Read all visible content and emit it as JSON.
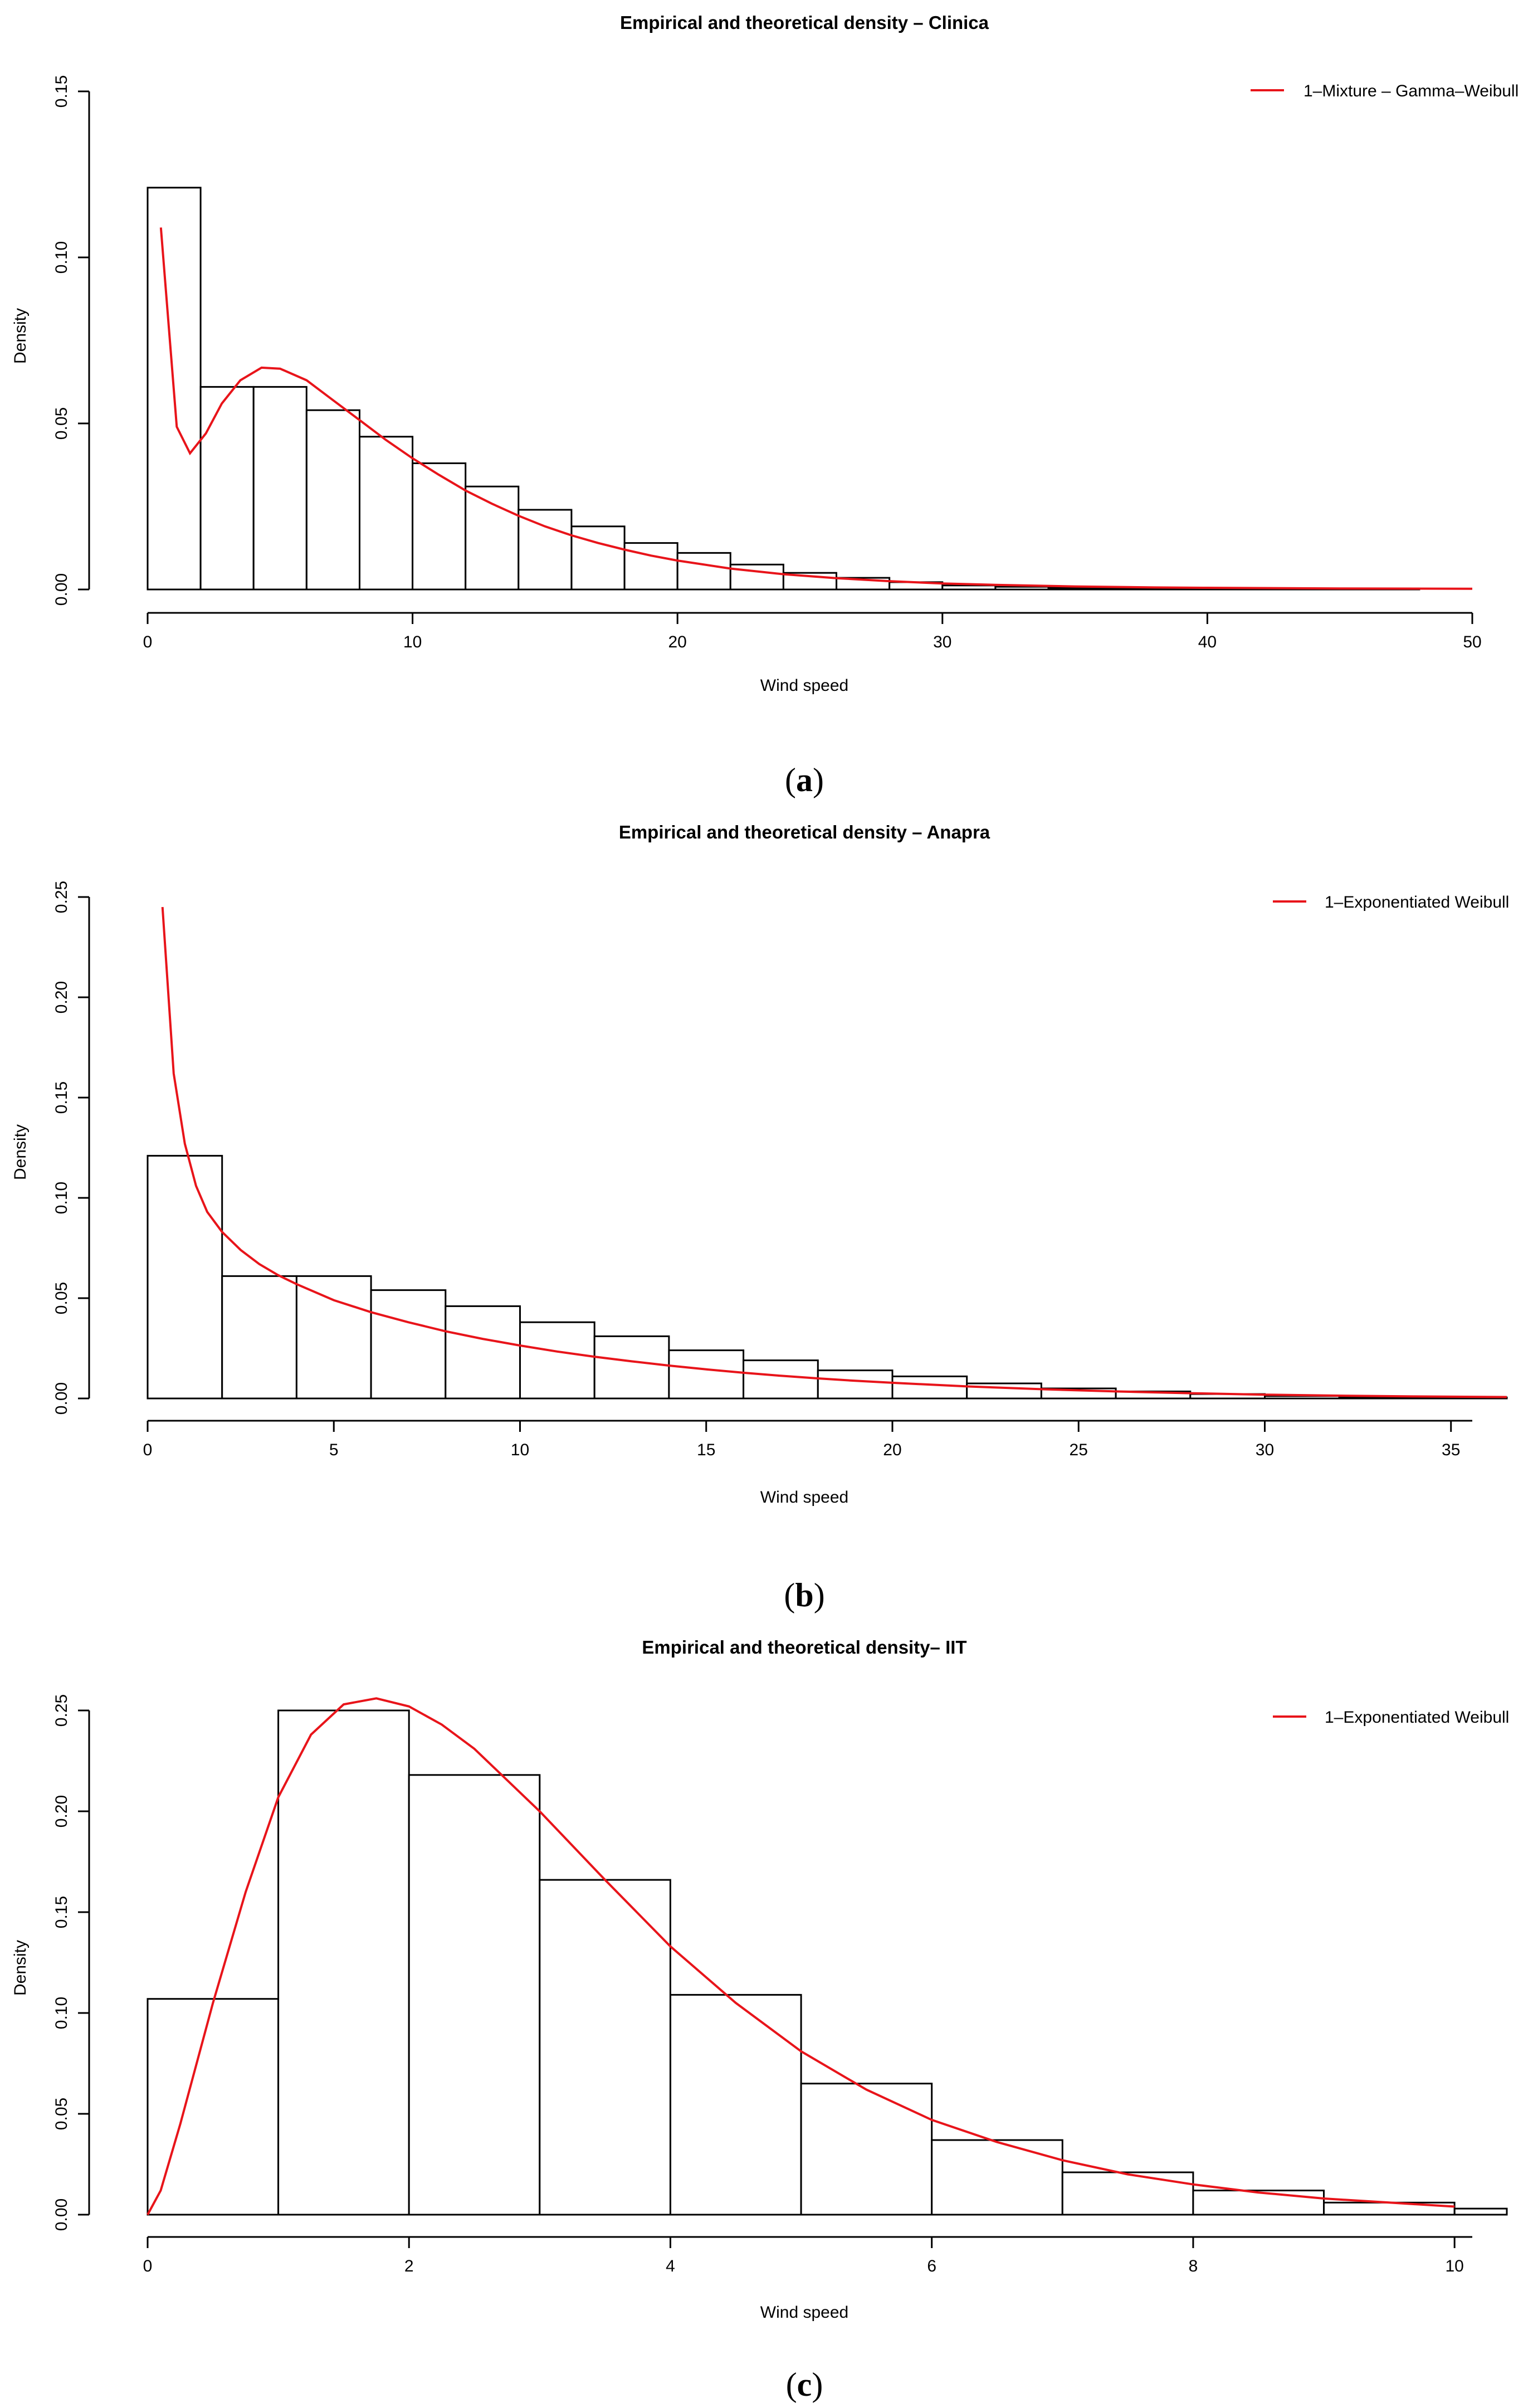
{
  "figure": {
    "panels": [
      {
        "caption_letter": "a"
      },
      {
        "caption_letter": "b"
      },
      {
        "caption_letter": "c"
      }
    ]
  },
  "chart_data": [
    {
      "type": "bar",
      "title": "Empirical and theoretical density – Clinica",
      "xlabel": "Wind speed",
      "ylabel": "Density",
      "xlim": [
        0,
        50
      ],
      "ylim": [
        0,
        0.15
      ],
      "xticks": [
        0,
        10,
        20,
        30,
        40,
        50
      ],
      "xtick_labels": [
        "0",
        "10",
        "20",
        "30",
        "40",
        "50"
      ],
      "yticks": [
        0,
        0.05,
        0.1,
        0.15
      ],
      "ytick_labels": [
        "0.00",
        "0.05",
        "0.10",
        "0.15"
      ],
      "legend_position": "top-right",
      "bins": {
        "edges": [
          0,
          2,
          4,
          6,
          8,
          10,
          12,
          14,
          16,
          18,
          20,
          22,
          24,
          26,
          28,
          30,
          32,
          34,
          36,
          38,
          40,
          42,
          44,
          46,
          48
        ],
        "density": [
          0.121,
          0.061,
          0.061,
          0.054,
          0.046,
          0.038,
          0.031,
          0.024,
          0.019,
          0.014,
          0.011,
          0.0075,
          0.005,
          0.0035,
          0.0022,
          0.0012,
          0.0008,
          0.0005,
          0.0004,
          0.0003,
          0.0003,
          0.0002,
          0.0002,
          0.0001
        ]
      },
      "series": [
        {
          "name": "1–Mixture – Gamma–Weibull",
          "color": "#e8141a",
          "x": [
            0.5,
            1.1,
            1.6,
            2.2,
            2.8,
            3.5,
            4.3,
            5.0,
            6.0,
            7.0,
            8.0,
            9.0,
            10,
            11,
            12,
            13,
            14,
            15,
            16,
            17,
            18,
            19,
            20,
            22,
            24,
            26,
            28,
            30,
            32,
            35,
            38,
            40,
            45,
            50
          ],
          "y": [
            0.109,
            0.049,
            0.041,
            0.047,
            0.056,
            0.063,
            0.0668,
            0.0665,
            0.063,
            0.057,
            0.051,
            0.045,
            0.0395,
            0.0345,
            0.0298,
            0.0258,
            0.0222,
            0.019,
            0.0163,
            0.014,
            0.012,
            0.0102,
            0.0087,
            0.0063,
            0.0046,
            0.0034,
            0.0025,
            0.0018,
            0.0014,
            0.0009,
            0.0006,
            0.0005,
            0.0003,
            0.0002
          ]
        }
      ]
    },
    {
      "type": "bar",
      "title": "Empirical and theoretical density – Anapra",
      "xlabel": "Wind speed",
      "ylabel": "Density",
      "xlim": [
        0,
        36.5
      ],
      "ylim": [
        0,
        0.25
      ],
      "xticks": [
        0,
        5,
        10,
        15,
        20,
        25,
        30,
        35
      ],
      "xtick_labels": [
        "0",
        "5",
        "10",
        "15",
        "20",
        "25",
        "30",
        "35"
      ],
      "yticks": [
        0,
        0.05,
        0.1,
        0.15,
        0.2,
        0.25
      ],
      "ytick_labels": [
        "0.00",
        "0.05",
        "0.10",
        "0.15",
        "0.20",
        "0.25"
      ],
      "legend_position": "top-right",
      "bins": {
        "edges": [
          0,
          2,
          4,
          6,
          8,
          10,
          12,
          14,
          16,
          18,
          20,
          22,
          24,
          26,
          28,
          30,
          32,
          34,
          36.5
        ],
        "density": [
          0.121,
          0.061,
          0.061,
          0.054,
          0.046,
          0.038,
          0.031,
          0.024,
          0.019,
          0.014,
          0.011,
          0.0075,
          0.005,
          0.0035,
          0.0022,
          0.0012,
          0.0008,
          0.0005
        ]
      },
      "series": [
        {
          "name": "1–Exponentiated Weibull",
          "color": "#e8141a",
          "x": [
            0.4,
            0.7,
            1.0,
            1.3,
            1.6,
            2.0,
            2.5,
            3.0,
            3.5,
            4,
            5,
            6,
            7,
            8,
            9,
            10,
            11,
            12,
            13,
            14,
            15,
            16,
            17,
            18,
            19,
            20,
            22,
            24,
            26,
            28,
            30,
            32,
            34,
            36.5
          ],
          "y": [
            0.245,
            0.162,
            0.127,
            0.106,
            0.093,
            0.083,
            0.074,
            0.067,
            0.0615,
            0.057,
            0.049,
            0.043,
            0.038,
            0.0335,
            0.0297,
            0.0264,
            0.0234,
            0.0208,
            0.0185,
            0.0164,
            0.0145,
            0.0128,
            0.0113,
            0.01,
            0.0088,
            0.0078,
            0.006,
            0.0046,
            0.0035,
            0.0026,
            0.0019,
            0.0014,
            0.001,
            0.0007
          ]
        }
      ]
    },
    {
      "type": "bar",
      "title": "Empirical and theoretical density– IIT",
      "xlabel": "Wind speed",
      "ylabel": "Density",
      "xlim": [
        0,
        10.4
      ],
      "ylim": [
        0,
        0.25
      ],
      "xticks": [
        0,
        2,
        4,
        6,
        8,
        10
      ],
      "xtick_labels": [
        "0",
        "2",
        "4",
        "6",
        "8",
        "10"
      ],
      "yticks": [
        0,
        0.05,
        0.1,
        0.15,
        0.2,
        0.25
      ],
      "ytick_labels": [
        "0.00",
        "0.05",
        "0.10",
        "0.15",
        "0.20",
        "0.25"
      ],
      "legend_position": "top-right",
      "bins": {
        "edges": [
          0,
          1,
          2,
          3,
          4,
          5,
          6,
          7,
          8,
          9,
          10,
          10.4
        ],
        "density": [
          0.107,
          0.25,
          0.218,
          0.166,
          0.109,
          0.065,
          0.037,
          0.021,
          0.012,
          0.006,
          0.003
        ]
      },
      "series": [
        {
          "name": "1–Exponentiated Weibull",
          "color": "#e8141a",
          "x": [
            0,
            0.1,
            0.25,
            0.5,
            0.75,
            1.0,
            1.25,
            1.5,
            1.75,
            2.0,
            2.25,
            2.5,
            3.0,
            3.5,
            4.0,
            4.5,
            5.0,
            5.5,
            6.0,
            6.5,
            7.0,
            7.5,
            8.0,
            8.5,
            9.0,
            9.5,
            10.0
          ],
          "y": [
            0,
            0.012,
            0.045,
            0.105,
            0.16,
            0.207,
            0.238,
            0.253,
            0.256,
            0.252,
            0.243,
            0.231,
            0.2,
            0.166,
            0.133,
            0.105,
            0.081,
            0.062,
            0.047,
            0.036,
            0.027,
            0.02,
            0.015,
            0.011,
            0.008,
            0.006,
            0.004
          ]
        }
      ]
    }
  ]
}
